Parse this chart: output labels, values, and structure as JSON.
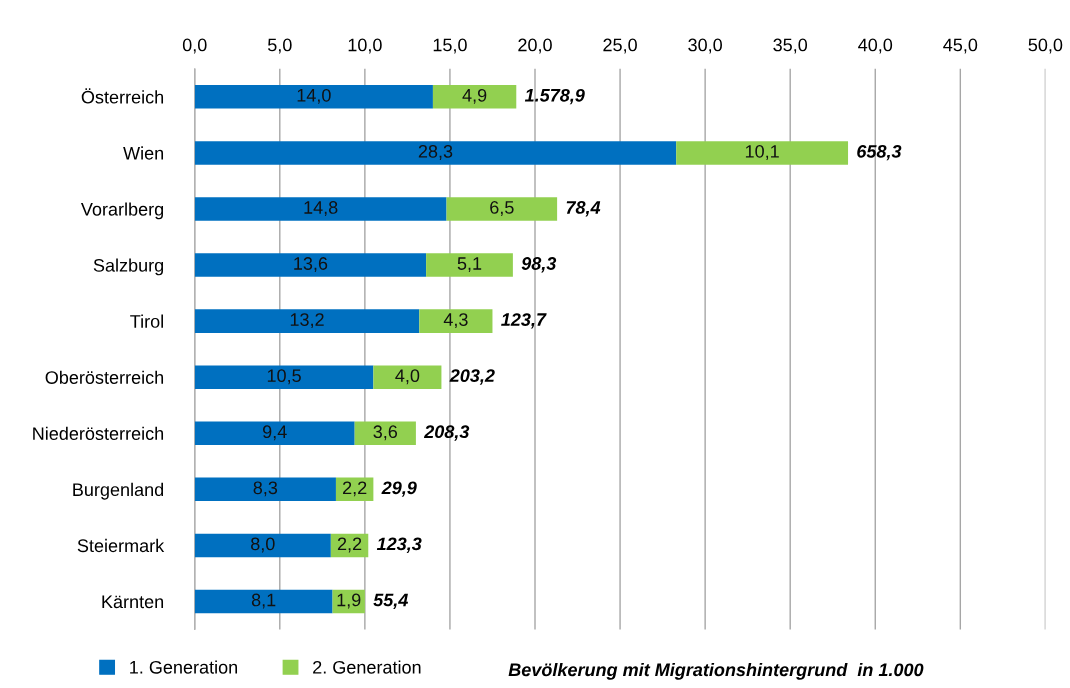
{
  "chart_data": {
    "type": "bar",
    "orientation": "horizontal",
    "stacked": true,
    "categories": [
      "Österreich",
      "Wien",
      "Vorarlberg",
      "Salzburg",
      "Tirol",
      "Oberösterreich",
      "Niederösterreich",
      "Burgenland",
      "Steiermark",
      "Kärnten"
    ],
    "series": [
      {
        "name": "1. Generation",
        "color": "#0070c0",
        "values": [
          14.0,
          28.3,
          14.8,
          13.6,
          13.2,
          10.5,
          9.4,
          8.3,
          8.0,
          8.1
        ],
        "value_labels": [
          "14,0",
          "28,3",
          "14,8",
          "13,6",
          "13,2",
          "10,5",
          "9,4",
          "8,3",
          "8,0",
          "8,1"
        ]
      },
      {
        "name": "2. Generation",
        "color": "#92d050",
        "values": [
          4.9,
          10.1,
          6.5,
          5.1,
          4.3,
          4.0,
          3.6,
          2.2,
          2.2,
          1.9
        ],
        "value_labels": [
          "4,9",
          "10,1",
          "6,5",
          "5,1",
          "4,3",
          "4,0",
          "3,6",
          "2,2",
          "2,2",
          "1,9"
        ]
      }
    ],
    "xlim": [
      0,
      50
    ],
    "xticks": [
      {
        "value": 0,
        "label": "0,0"
      },
      {
        "value": 5,
        "label": "5,0"
      },
      {
        "value": 10,
        "label": "10,0"
      },
      {
        "value": 15,
        "label": "15,0"
      },
      {
        "value": 20,
        "label": "20,0"
      },
      {
        "value": 25,
        "label": "25,0"
      },
      {
        "value": 30,
        "label": "30,0"
      },
      {
        "value": 35,
        "label": "35,0"
      },
      {
        "value": 40,
        "label": "40,0"
      },
      {
        "value": 45,
        "label": "45,0"
      },
      {
        "value": 50,
        "label": "50,0"
      }
    ],
    "grid": "x",
    "legend": "bottom",
    "annotations": [
      {
        "text": "1.578,9",
        "x": 18.9,
        "y": "Österreich"
      },
      {
        "text": "658,3",
        "x": 38.4,
        "y": "Wien"
      },
      {
        "text": "78,4",
        "x": 21.3,
        "y": "Vorarlberg"
      },
      {
        "text": "98,3",
        "x": 18.7,
        "y": "Salzburg"
      },
      {
        "text": "123,7",
        "x": 17.5,
        "y": "Tirol"
      },
      {
        "text": "203,2",
        "x": 14.5,
        "y": "Oberösterreich"
      },
      {
        "text": "208,3",
        "x": 13.0,
        "y": "Niederösterreich"
      },
      {
        "text": "29,9",
        "x": 10.5,
        "y": "Burgenland"
      },
      {
        "text": "123,3",
        "x": 10.2,
        "y": "Steiermark"
      },
      {
        "text": "55,4",
        "x": 10.0,
        "y": "Kärnten"
      },
      "Bevölkerung mit Migrationshintergrund  in 1.000"
    ]
  }
}
